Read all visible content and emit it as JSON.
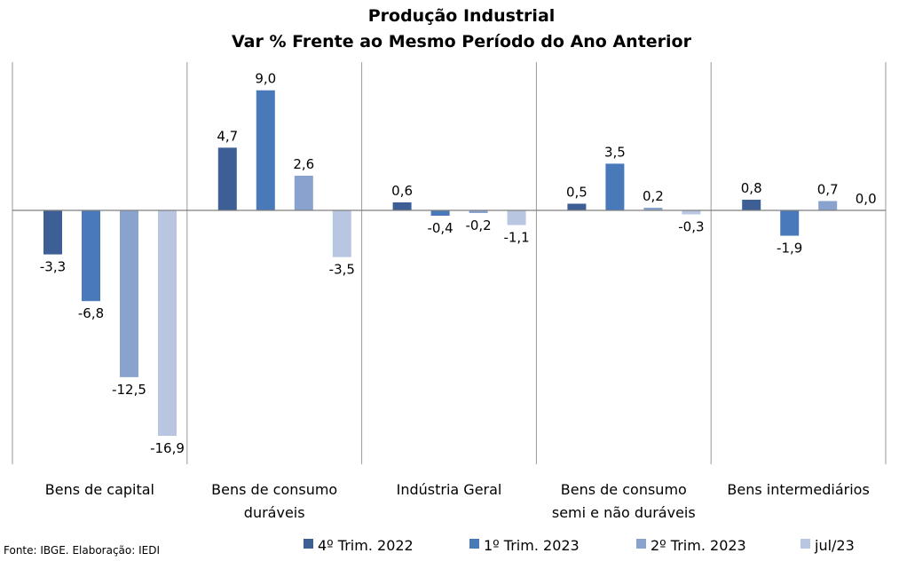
{
  "chart_data": {
    "type": "bar",
    "title": "Produção Industrial",
    "subtitle": "Var % Frente ao Mesmo Período do Ano Anterior",
    "categories": [
      [
        "Bens de capital"
      ],
      [
        "Bens de consumo",
        "duráveis"
      ],
      [
        "Indústria Geral"
      ],
      [
        "Bens de consumo",
        "semi e não duráveis"
      ],
      [
        "Bens intermediários"
      ]
    ],
    "series": [
      {
        "name": "4º Trim. 2022",
        "color": "#3d5f95",
        "values": [
          -3.3,
          4.7,
          0.6,
          0.5,
          0.8
        ]
      },
      {
        "name": "1º Trim. 2023",
        "color": "#4a79ba",
        "values": [
          -6.8,
          9.0,
          -0.4,
          3.5,
          -1.9
        ]
      },
      {
        "name": "2º Trim. 2023",
        "color": "#8aa2ce",
        "values": [
          -12.5,
          2.6,
          -0.2,
          0.2,
          0.7
        ]
      },
      {
        "name": "jul/23",
        "color": "#b9c6e2",
        "values": [
          -16.9,
          -3.5,
          -1.1,
          -0.3,
          0.0
        ]
      }
    ],
    "data_labels": [
      [
        "-3,3",
        "4,7",
        "0,6",
        "0,5",
        "0,8"
      ],
      [
        "-6,8",
        "9,0",
        "-0,4",
        "3,5",
        "-1,9"
      ],
      [
        "-12,5",
        "2,6",
        "-0,2",
        "0,2",
        "0,7"
      ],
      [
        "-16,9",
        "-3,5",
        "-1,1",
        "-0,3",
        "0,0"
      ]
    ],
    "legend_position": "bottom",
    "grid": false,
    "source": "Fonte: IBGE. Elaboração: IEDI"
  }
}
